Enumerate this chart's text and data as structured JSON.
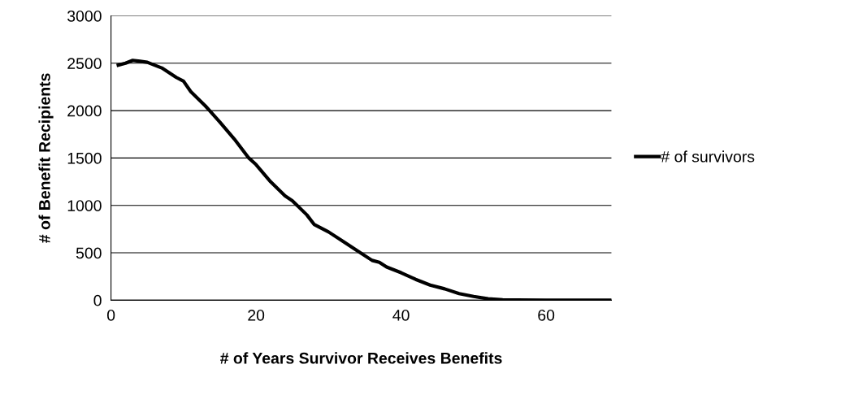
{
  "chart_data": {
    "type": "line",
    "xlabel": "# of Years Survivor Receives Benefits",
    "ylabel": "# of Benefit Recipients",
    "series": [
      {
        "name": "# of survivors",
        "color": "#000000",
        "x": [
          1,
          2,
          3,
          4,
          5,
          7,
          9,
          10,
          11,
          13,
          15,
          17,
          19,
          20,
          22,
          24,
          25,
          27,
          28,
          30,
          32,
          34,
          36,
          37,
          38,
          40,
          42,
          44,
          46,
          48,
          50,
          52,
          54,
          56,
          60,
          65,
          69
        ],
        "values": [
          2480,
          2500,
          2530,
          2520,
          2510,
          2450,
          2350,
          2310,
          2200,
          2050,
          1880,
          1700,
          1500,
          1430,
          1250,
          1100,
          1050,
          900,
          800,
          720,
          620,
          520,
          420,
          400,
          350,
          290,
          220,
          160,
          120,
          70,
          40,
          15,
          5,
          2,
          0,
          0,
          0
        ]
      }
    ],
    "xlim": [
      0,
      69
    ],
    "xticks": [
      0,
      20,
      40,
      60
    ],
    "ylim": [
      0,
      3000
    ],
    "yticks": [
      0,
      500,
      1000,
      1500,
      2000,
      2500,
      3000
    ],
    "grid": "y",
    "legend": "right",
    "marker": "none",
    "line_style": "solid"
  }
}
